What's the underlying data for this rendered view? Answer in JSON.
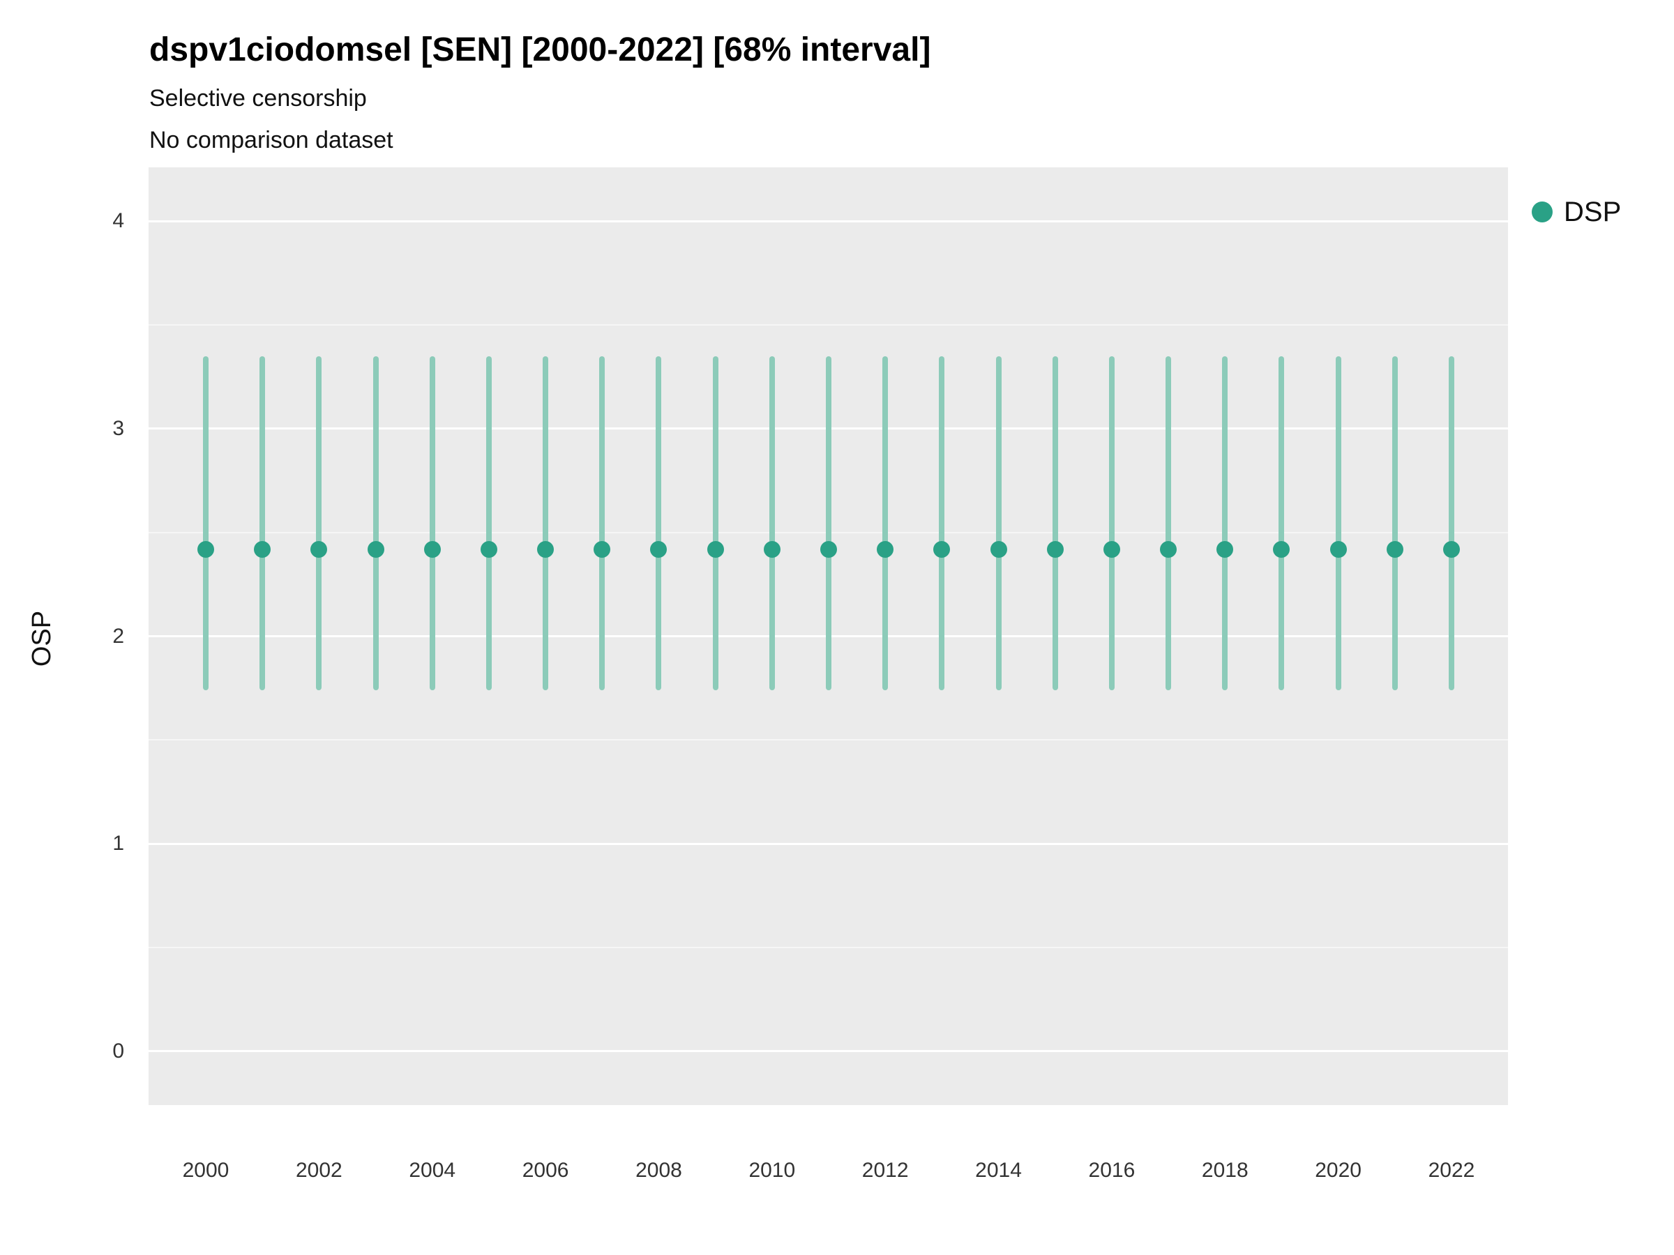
{
  "colors": {
    "point": "#2aa186",
    "interval": "#8ccbb9",
    "panel_bg": "#ebebeb",
    "grid": "#ffffff",
    "text": "#111111",
    "tick_text": "#333333"
  },
  "legend": {
    "items": [
      {
        "label": "DSP",
        "color": "#2aa186"
      }
    ]
  },
  "chart_data": {
    "type": "scatter",
    "title": "dspv1ciodomsel [SEN] [2000-2022] [68% interval]",
    "subtitle": "Selective censorship",
    "note": "No comparison dataset",
    "interval": "68%",
    "xlabel": "",
    "ylabel": "OSP",
    "x": [
      2000,
      2001,
      2002,
      2003,
      2004,
      2005,
      2006,
      2007,
      2008,
      2009,
      2010,
      2011,
      2012,
      2013,
      2014,
      2015,
      2016,
      2017,
      2018,
      2019,
      2020,
      2021,
      2022
    ],
    "series": [
      {
        "name": "DSP",
        "values": [
          2.42,
          2.42,
          2.42,
          2.42,
          2.42,
          2.42,
          2.42,
          2.42,
          2.42,
          2.42,
          2.42,
          2.42,
          2.42,
          2.42,
          2.42,
          2.42,
          2.42,
          2.42,
          2.42,
          2.42,
          2.42,
          2.42,
          2.42
        ],
        "lower": [
          1.74,
          1.74,
          1.74,
          1.74,
          1.74,
          1.74,
          1.74,
          1.74,
          1.74,
          1.74,
          1.74,
          1.74,
          1.74,
          1.74,
          1.74,
          1.74,
          1.74,
          1.74,
          1.74,
          1.74,
          1.74,
          1.74,
          1.74
        ],
        "upper": [
          3.35,
          3.35,
          3.35,
          3.35,
          3.35,
          3.35,
          3.35,
          3.35,
          3.35,
          3.35,
          3.35,
          3.35,
          3.35,
          3.35,
          3.35,
          3.35,
          3.35,
          3.35,
          3.35,
          3.35,
          3.35,
          3.35,
          3.35
        ]
      }
    ],
    "ylim": [
      -0.26,
      4.26
    ],
    "yticks": [
      0,
      1,
      2,
      3,
      4
    ],
    "yticks_minor": [
      0.5,
      1.5,
      2.5,
      3.5
    ],
    "xticks": [
      2000,
      2002,
      2004,
      2006,
      2008,
      2010,
      2012,
      2014,
      2016,
      2018,
      2020,
      2022
    ],
    "grid": "on",
    "legend_position": "right-top"
  }
}
